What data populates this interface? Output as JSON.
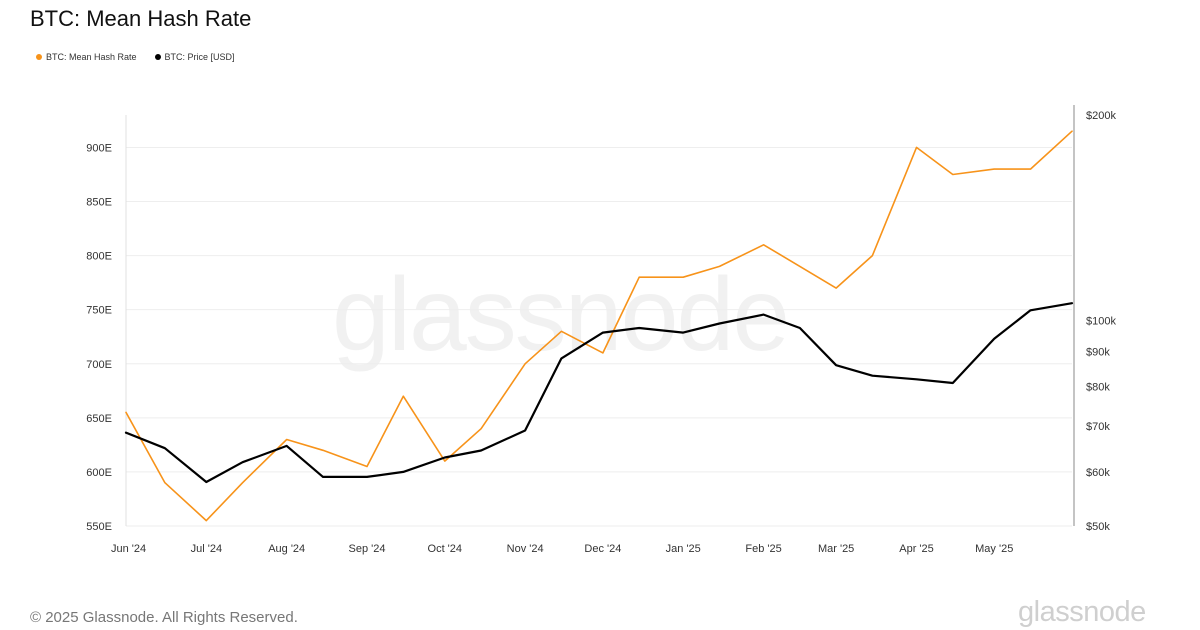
{
  "page": {
    "title": "BTC: Mean Hash Rate",
    "copyright": "© 2025 Glassnode. All Rights Reserved.",
    "footer_logo": "glassnode",
    "watermark": "glassnode"
  },
  "colors": {
    "hash_rate": "#f7931a",
    "price": "#000000",
    "grid": "#eeeeee"
  },
  "chart_data": {
    "type": "line",
    "title": "BTC: Mean Hash Rate",
    "x": [
      "2024-05-31",
      "2024-06-15",
      "2024-07-01",
      "2024-07-15",
      "2024-08-01",
      "2024-08-15",
      "2024-09-01",
      "2024-09-15",
      "2024-10-01",
      "2024-10-15",
      "2024-11-01",
      "2024-11-15",
      "2024-12-01",
      "2024-12-15",
      "2025-01-01",
      "2025-01-15",
      "2025-02-01",
      "2025-02-15",
      "2025-03-01",
      "2025-03-15",
      "2025-04-01",
      "2025-04-15",
      "2025-05-01",
      "2025-05-15",
      "2025-05-31"
    ],
    "x_tick_labels": [
      "Jun '24",
      "Jul '24",
      "Aug '24",
      "Sep '24",
      "Oct '24",
      "Nov '24",
      "Dec '24",
      "Jan '25",
      "Feb '25",
      "Mar '25",
      "Apr '25",
      "May '25"
    ],
    "x_tick_dates": [
      "2024-06-01",
      "2024-07-01",
      "2024-08-01",
      "2024-09-01",
      "2024-10-01",
      "2024-11-01",
      "2024-12-01",
      "2025-01-01",
      "2025-02-01",
      "2025-03-01",
      "2025-04-01",
      "2025-05-01"
    ],
    "series": [
      {
        "name": "BTC: Mean Hash Rate",
        "axis": "left",
        "values": [
          655,
          590,
          555,
          590,
          630,
          620,
          605,
          670,
          610,
          640,
          700,
          730,
          710,
          780,
          780,
          790,
          810,
          790,
          770,
          800,
          900,
          875,
          880,
          880,
          915
        ]
      },
      {
        "name": "BTC: Price [USD]",
        "axis": "right",
        "values": [
          68500,
          65000,
          58000,
          62000,
          65500,
          59000,
          59000,
          60000,
          63000,
          64500,
          69000,
          88000,
          96000,
          97500,
          96000,
          99000,
          102000,
          97500,
          86000,
          83000,
          82000,
          81000,
          94000,
          103500,
          106000
        ]
      }
    ],
    "left_axis": {
      "ticks": [
        "550E",
        "600E",
        "650E",
        "700E",
        "750E",
        "800E",
        "850E",
        "900E"
      ],
      "ylim": [
        550,
        930
      ]
    },
    "right_axis": {
      "scale": "log",
      "ticks": [
        "$50k",
        "$60k",
        "$70k",
        "$80k",
        "$90k",
        "$100k",
        "$200k"
      ],
      "ylim": [
        50000,
        200000
      ]
    },
    "legend_position": "top-left",
    "grid": true
  }
}
